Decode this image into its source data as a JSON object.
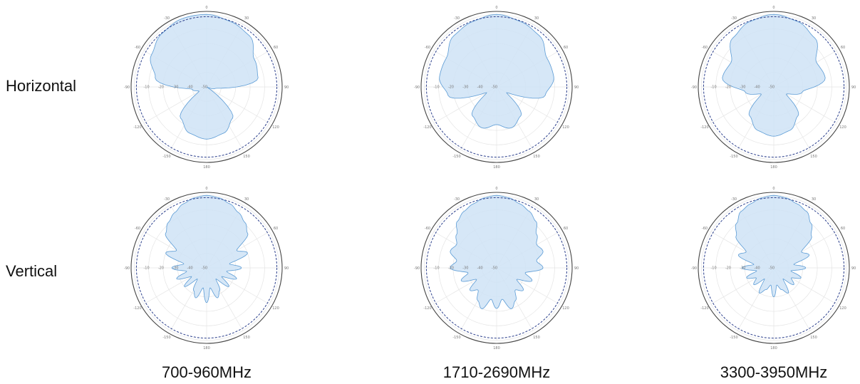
{
  "row_labels": [
    "Horizontal",
    "Vertical"
  ],
  "band_labels": [
    "700-960MHz",
    "1710-2690MHz",
    "3300-3950MHz"
  ],
  "colors": {
    "pattern_fill": "#cfe3f6",
    "pattern_stroke": "#5b9bd5",
    "outer_ring": "#444444",
    "reference_ring": "#2b3f8c",
    "grid": "#e4e4e4"
  },
  "chart_data": [
    {
      "type": "polar",
      "band": "700-960MHz",
      "plane": "Horizontal",
      "angle_ticks": [
        "0",
        "30",
        "60",
        "90",
        "120",
        "150",
        "180",
        "-150",
        "-120",
        "-90",
        "-60",
        "-30"
      ],
      "radial_ticks": [
        "-10",
        "-20",
        "-30",
        "-40",
        "-50"
      ],
      "angles": [
        0,
        20,
        40,
        60,
        80,
        100,
        120,
        140,
        160,
        180,
        200,
        220,
        240,
        260,
        280,
        300,
        320,
        340
      ],
      "gain_db": [
        0,
        -2,
        -4,
        -12,
        -14,
        -44,
        -50,
        -22,
        -16,
        -14,
        -16,
        -22,
        -44,
        -40,
        -14,
        -6,
        -2,
        0
      ]
    },
    {
      "type": "polar",
      "band": "1710-2690MHz",
      "plane": "Horizontal",
      "angle_ticks": [
        "0",
        "30",
        "60",
        "90",
        "120",
        "150",
        "180",
        "-150",
        "-120",
        "-90",
        "-60",
        "-30"
      ],
      "radial_ticks": [
        "-10",
        "-20",
        "-30",
        "-40",
        "-50"
      ],
      "angles": [
        0,
        20,
        40,
        60,
        80,
        100,
        120,
        140,
        160,
        180,
        200,
        220,
        240,
        260,
        280,
        300,
        320,
        340
      ],
      "gain_db": [
        0,
        -2,
        -4,
        -10,
        -10,
        -16,
        -42,
        -24,
        -20,
        -24,
        -20,
        -24,
        -42,
        -16,
        -10,
        -10,
        -4,
        -2
      ]
    },
    {
      "type": "polar",
      "band": "3300-3950MHz",
      "plane": "Horizontal",
      "angle_ticks": [
        "0",
        "30",
        "60",
        "90",
        "120",
        "150",
        "180",
        "-150",
        "-120",
        "-90",
        "-60",
        "-30"
      ],
      "radial_ticks": [
        "-10",
        "-20",
        "-30",
        "-40",
        "-50"
      ],
      "angles": [
        0,
        20,
        40,
        60,
        80,
        100,
        120,
        140,
        160,
        180,
        200,
        220,
        240,
        260,
        280,
        300,
        320,
        340
      ],
      "gain_db": [
        0,
        -2,
        -6,
        -16,
        -14,
        -30,
        -40,
        -24,
        -18,
        -16,
        -18,
        -24,
        -40,
        -30,
        -14,
        -16,
        -6,
        -2
      ]
    },
    {
      "type": "polar",
      "band": "700-960MHz",
      "plane": "Vertical",
      "angle_ticks": [
        "0",
        "30",
        "60",
        "90",
        "120",
        "150",
        "180",
        "-150",
        "-120",
        "-90",
        "-60",
        "-30"
      ],
      "radial_ticks": [
        "-10",
        "-20",
        "-30",
        "-40",
        "-50"
      ],
      "angles": [
        0,
        10,
        20,
        30,
        40,
        50,
        60,
        70,
        80,
        90,
        100,
        110,
        120,
        130,
        140,
        150,
        160,
        170,
        180,
        190,
        200,
        210,
        220,
        230,
        240,
        250,
        260,
        270,
        280,
        290,
        300,
        310,
        320,
        330,
        340,
        350
      ],
      "gain_db": [
        0,
        -1,
        -3,
        -6,
        -9,
        -13,
        -26,
        -20,
        -34,
        -26,
        -36,
        -28,
        -38,
        -30,
        -40,
        -32,
        -28,
        -36,
        -26,
        -36,
        -28,
        -32,
        -40,
        -30,
        -38,
        -28,
        -36,
        -26,
        -34,
        -20,
        -26,
        -13,
        -9,
        -6,
        -3,
        -1
      ]
    },
    {
      "type": "polar",
      "band": "1710-2690MHz",
      "plane": "Vertical",
      "angle_ticks": [
        "0",
        "30",
        "60",
        "90",
        "120",
        "150",
        "180",
        "-150",
        "-120",
        "-90",
        "-60",
        "-30"
      ],
      "radial_ticks": [
        "-10",
        "-20",
        "-30",
        "-40",
        "-50"
      ],
      "angles": [
        0,
        10,
        20,
        30,
        40,
        50,
        60,
        70,
        80,
        90,
        100,
        110,
        120,
        130,
        140,
        150,
        160,
        170,
        180,
        190,
        200,
        210,
        220,
        230,
        240,
        250,
        260,
        270,
        280,
        290,
        300,
        310,
        320,
        330,
        340,
        350
      ],
      "gain_db": [
        0,
        -1,
        -3,
        -5,
        -8,
        -14,
        -18,
        -16,
        -22,
        -18,
        -30,
        -24,
        -34,
        -26,
        -30,
        -24,
        -20,
        -28,
        -22,
        -28,
        -20,
        -24,
        -30,
        -26,
        -34,
        -24,
        -30,
        -18,
        -22,
        -16,
        -18,
        -14,
        -8,
        -5,
        -3,
        -1
      ]
    },
    {
      "type": "polar",
      "band": "3300-3950MHz",
      "plane": "Vertical",
      "angle_ticks": [
        "0",
        "30",
        "60",
        "90",
        "120",
        "150",
        "180",
        "-150",
        "-120",
        "-90",
        "-60",
        "-30"
      ],
      "radial_ticks": [
        "-10",
        "-20",
        "-30",
        "-40",
        "-50"
      ],
      "angles": [
        0,
        10,
        20,
        30,
        40,
        50,
        60,
        70,
        80,
        90,
        100,
        110,
        120,
        130,
        140,
        150,
        160,
        170,
        180,
        190,
        200,
        210,
        220,
        230,
        240,
        250,
        260,
        270,
        280,
        290,
        300,
        310,
        320,
        330,
        340,
        350
      ],
      "gain_db": [
        0,
        -1,
        -3,
        -5,
        -10,
        -16,
        -28,
        -24,
        -36,
        -28,
        -38,
        -30,
        -36,
        -32,
        -40,
        -30,
        -34,
        -38,
        -30,
        -38,
        -34,
        -30,
        -40,
        -32,
        -36,
        -30,
        -38,
        -28,
        -36,
        -24,
        -28,
        -16,
        -10,
        -5,
        -3,
        -1
      ]
    }
  ]
}
